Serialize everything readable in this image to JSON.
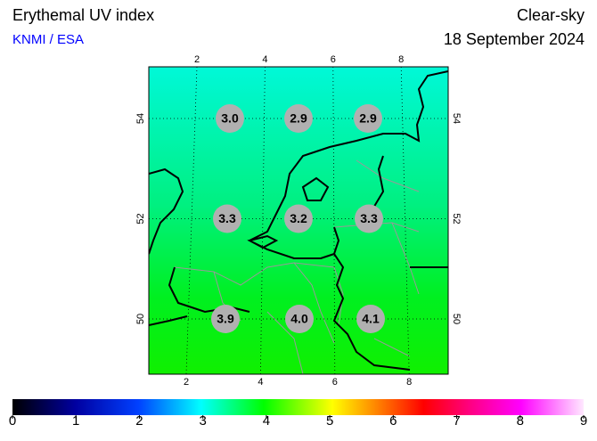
{
  "header": {
    "title": "Erythemal UV index",
    "source": "KNMI / ESA",
    "condition": "Clear-sky",
    "date": "18 September 2024"
  },
  "map": {
    "lon_ticks": [
      2,
      4,
      6,
      8
    ],
    "lat_ticks": [
      54,
      52,
      50
    ],
    "uv_values": [
      [
        "3.0",
        "2.9",
        "2.9"
      ],
      [
        "3.3",
        "3.2",
        "3.3"
      ],
      [
        "3.9",
        "4.0",
        "4.1"
      ]
    ]
  },
  "colorbar": {
    "range": [
      0,
      9
    ],
    "ticks": [
      0,
      1,
      2,
      3,
      4,
      5,
      6,
      7,
      8,
      9
    ]
  }
}
